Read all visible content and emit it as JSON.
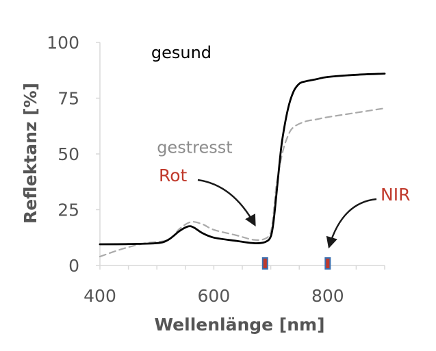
{
  "chart_data": {
    "type": "line",
    "title": "",
    "xlabel": "Wellenlänge [nm]",
    "ylabel": "Reflektanz [%]",
    "xlim": [
      400,
      900
    ],
    "ylim": [
      0,
      100
    ],
    "xticks": [
      400,
      600,
      800
    ],
    "yticks": [
      0,
      25,
      50,
      75,
      100
    ],
    "xtick_labels": [
      "400",
      "600",
      "800"
    ],
    "ytick_labels": [
      "0",
      "25",
      "50",
      "75",
      "100"
    ],
    "grid": false,
    "series": [
      {
        "name": "gesund",
        "color": "#000000",
        "style": "solid",
        "x": [
          400,
          450,
          500,
          520,
          540,
          555,
          565,
          580,
          600,
          640,
          670,
          690,
          700,
          705,
          710,
          715,
          720,
          730,
          740,
          750,
          760,
          780,
          800,
          850,
          900
        ],
        "y": [
          9.5,
          9.6,
          10.0,
          11.5,
          15.5,
          17.5,
          17.0,
          14.5,
          12.5,
          11.0,
          10.0,
          10.5,
          13.0,
          20.0,
          32.0,
          45.0,
          56.0,
          70.0,
          78.0,
          81.5,
          82.5,
          83.5,
          84.5,
          85.5,
          86.0
        ]
      },
      {
        "name": "gestresst",
        "color": "#aaaaaa",
        "style": "dashed",
        "x": [
          400,
          440,
          480,
          520,
          540,
          560,
          580,
          600,
          640,
          670,
          690,
          700,
          705,
          710,
          720,
          730,
          740,
          760,
          780,
          800,
          850,
          900
        ],
        "y": [
          4.0,
          7.5,
          10.0,
          11.5,
          16.5,
          19.5,
          18.5,
          16.0,
          13.5,
          11.5,
          12.0,
          15.0,
          24.0,
          36.0,
          50.0,
          58.0,
          62.0,
          64.5,
          65.5,
          66.5,
          68.5,
          70.5
        ]
      }
    ],
    "series_labels": [
      {
        "text": "gesund",
        "x": 490,
        "y": 93,
        "color": "#000000"
      },
      {
        "text": "gestresst",
        "x": 500,
        "y": 50.5,
        "color": "#8c8c8c"
      }
    ],
    "annotations": [
      {
        "text": "Rot",
        "color": "#c0392b",
        "points_to_x": 690,
        "marker_color": "#c0392b",
        "marker_border": "#3a6fb0"
      },
      {
        "text": "NIR",
        "color": "#c0392b",
        "points_to_x": 800,
        "marker_color": "#c0392b",
        "marker_border": "#3a6fb0"
      }
    ],
    "bands": [
      690,
      800
    ],
    "colors": {
      "axis": "#d9d9d9",
      "text": "#555555",
      "arrow": "#1a1a1a"
    }
  }
}
